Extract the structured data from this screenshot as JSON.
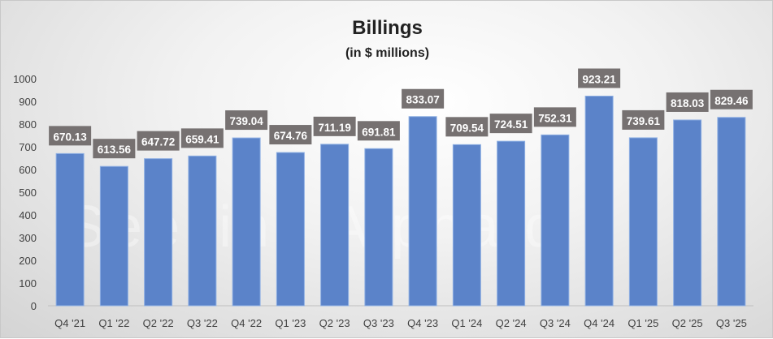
{
  "chart_data": {
    "type": "bar",
    "title": "Billings",
    "subtitle": "(in $ millions)",
    "xlabel": "",
    "ylabel": "",
    "categories": [
      "Q4 '21",
      "Q1 '22",
      "Q2 '22",
      "Q3 '22",
      "Q4 '22",
      "Q1 '23",
      "Q2 '23",
      "Q3 '23",
      "Q4 '23",
      "Q1 '24",
      "Q2 '24",
      "Q3 '24",
      "Q4 '24",
      "Q1 '25",
      "Q2 '25",
      "Q3 '25"
    ],
    "values": [
      670.13,
      613.56,
      647.72,
      659.41,
      739.04,
      674.76,
      711.19,
      691.81,
      833.07,
      709.54,
      724.51,
      752.31,
      923.21,
      739.61,
      818.03,
      829.46
    ],
    "value_labels": [
      "670.13",
      "613.56",
      "647.72",
      "659.41",
      "739.04",
      "674.76",
      "711.19",
      "691.81",
      "833.07",
      "709.54",
      "724.51",
      "752.31",
      "923.21",
      "739.61",
      "818.03",
      "829.46"
    ],
    "ylim": [
      0,
      1000
    ],
    "yticks": [
      "0",
      "100",
      "200",
      "300",
      "400",
      "500",
      "600",
      "700",
      "800",
      "900",
      "1000"
    ],
    "grid": false,
    "legend": "none",
    "bar_color": "#5b83c9",
    "label_bg_color": "#767171",
    "watermark": "Seeking Alpha α"
  }
}
